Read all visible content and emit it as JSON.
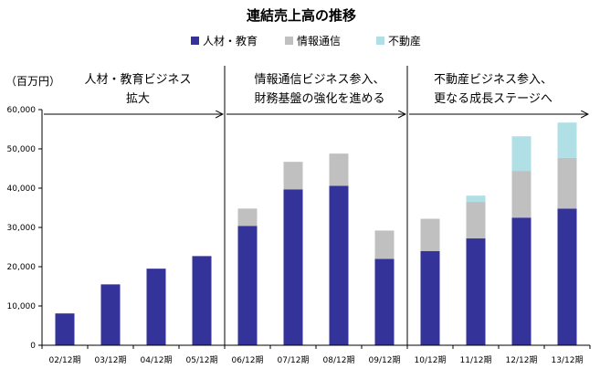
{
  "chart_data": {
    "type": "bar",
    "stacked": true,
    "title": "連結売上高の推移",
    "xlabel": "",
    "ylabel": "（百万円）",
    "ylim": [
      0,
      60000
    ],
    "yticks": [
      0,
      10000,
      20000,
      30000,
      40000,
      50000,
      60000
    ],
    "ytick_labels": [
      "0",
      "10,000",
      "20,000",
      "30,000",
      "40,000",
      "50,000",
      "60,000"
    ],
    "grid": false,
    "legend": "top-center",
    "categories": [
      "02/12期",
      "03/12期",
      "04/12期",
      "05/12期",
      "06/12期",
      "07/12期",
      "08/12期",
      "09/12期",
      "10/12期",
      "11/12期",
      "12/12期",
      "13/12期"
    ],
    "series": [
      {
        "name": "人材・教育",
        "color": "#333399",
        "values": [
          8100,
          15500,
          19500,
          22700,
          30400,
          39700,
          40600,
          22000,
          24000,
          27200,
          32500,
          34800
        ]
      },
      {
        "name": "情報通信",
        "color": "#c0c0c0",
        "values": [
          0,
          0,
          0,
          0,
          4400,
          7000,
          8200,
          7200,
          8200,
          9300,
          11900,
          12900
        ]
      },
      {
        "name": "不動産",
        "color": "#b0dfe6",
        "values": [
          0,
          0,
          0,
          0,
          0,
          0,
          0,
          0,
          0,
          1600,
          8800,
          9000
        ]
      }
    ],
    "annotations": [
      {
        "lines": [
          "人材・教育ビジネス",
          "拡大"
        ],
        "span": [
          0,
          3
        ]
      },
      {
        "lines": [
          "情報通信ビジネス参入、",
          "財務基盤の強化を進める"
        ],
        "span": [
          4,
          7
        ]
      },
      {
        "lines": [
          "不動産ビジネス参入、",
          "更なる成長ステージへ"
        ],
        "span": [
          8,
          11
        ]
      }
    ]
  }
}
